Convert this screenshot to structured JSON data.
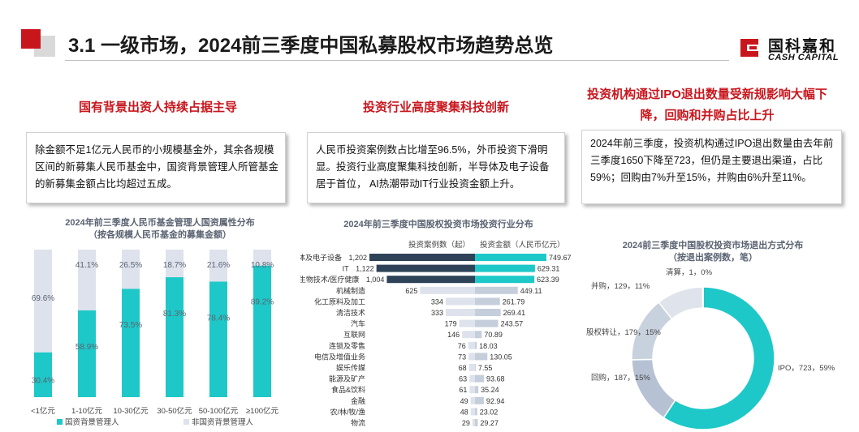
{
  "header": {
    "title": "3.1 一级市场，2024前三季度中国私募股权市场趋势总览",
    "logo_cn": "国科嘉和",
    "logo_en": "CASH CAPITAL"
  },
  "columns": [
    {
      "heading": "国有背景出资人持续占据主导",
      "text": "除金额不足1亿元人民币的小规模基金外，其余各规模区间的新募集人民币基金中，国资背景管理人所管基金的新募集金额占比均超过五成。"
    },
    {
      "heading": "投资行业高度聚集科技创新",
      "text": "人民币投资案例数占比增至96.5%，外币投资下滑明显。投资行业高度聚集科技创新，半导体及电子设备居于首位， AI热潮带动IT行业投资金额上升。"
    },
    {
      "heading_line1": "投资机构通过IPO退出数量受新规影响大幅下",
      "heading_line2": "降，回购和并购占比上升",
      "text": "2024年前三季度，投资机构通过IPO退出数量由去年前三季度1650下降至723，但仍是主要退出渠道，占比59%；回购由7%升至15%，并购由6%升至11%。"
    }
  ],
  "colors": {
    "accent_red": "#c8161d",
    "teal": "#1ec8c8",
    "navy": "#2f4358",
    "light_gray": "#dde2ec",
    "mid_gray": "#c5cedb"
  },
  "chart_data": [
    {
      "type": "bar",
      "stacked": true,
      "percent": true,
      "title_line1": "2024年前三季度人民币基金管理人国资属性分布",
      "title_line2": "（按各规模人民币基金的募集金额）",
      "categories": [
        "<1亿元",
        "1-10亿元",
        "10-30亿元",
        "30-50亿元",
        "50-100亿元",
        "≥100亿元"
      ],
      "series": [
        {
          "name": "国资背景管理人",
          "values": [
            30.4,
            58.9,
            73.5,
            81.3,
            78.4,
            89.2
          ],
          "labels": [
            "30.4%",
            "58.9%",
            "73.5%",
            "81.3%",
            "78.4%",
            "89.2%"
          ]
        },
        {
          "name": "非国资背景管理人",
          "values": [
            69.6,
            41.1,
            26.5,
            18.7,
            21.6,
            10.8
          ],
          "labels": [
            "69.6%",
            "41.1%",
            "26.5%",
            "18.7%",
            "21.6%",
            "10.8%"
          ]
        }
      ],
      "ylim": [
        0,
        100
      ],
      "legend": "bottom-left",
      "grid": false
    },
    {
      "type": "bar",
      "orientation": "horizontal",
      "diverging": true,
      "title": "2024年前三季度中国股权投资市场投资行业分布",
      "categories": [
        "半导体及电子设备",
        "IT",
        "生物技术/医疗健康",
        "机械制造",
        "化工原料及加工",
        "清洁技术",
        "汽车",
        "互联网",
        "连锁及零售",
        "电信及增值业务",
        "娱乐传媒",
        "能源及矿产",
        "食品&饮料",
        "金融",
        "农/林/牧/渔",
        "物流"
      ],
      "series": [
        {
          "name": "投资案例数（起）",
          "values": [
            1202,
            1122,
            1004,
            625,
            334,
            333,
            179,
            146,
            76,
            73,
            68,
            63,
            61,
            49,
            48,
            29
          ],
          "labels": [
            "1,202",
            "1,122",
            "1,004",
            "625",
            "334",
            "333",
            "179",
            "146",
            "76",
            "73",
            "68",
            "63",
            "61",
            "49",
            "48",
            "29"
          ]
        },
        {
          "name": "投资金额（人民币亿元）",
          "values": [
            749.67,
            629.31,
            623.39,
            449.11,
            261.79,
            269.41,
            243.57,
            70.89,
            18.03,
            130.05,
            7.55,
            93.68,
            35.24,
            92.94,
            23.02,
            29.27
          ],
          "labels": [
            "749.67",
            "629.31",
            "623.39",
            "449.11",
            "261.79",
            "269.41",
            "243.57",
            "70.89",
            "18.03",
            "130.05",
            "7.55",
            "93.68",
            "35.24",
            "92.94",
            "23.02",
            "29.27"
          ]
        }
      ],
      "legend": "top",
      "grid": false
    },
    {
      "type": "pie",
      "donut": true,
      "title_line1": "2024前三季度中国股权投资市场退出方式分布",
      "title_line2": "（按退出案例数，笔）",
      "slices": [
        {
          "name": "IPO",
          "value": 723,
          "percent": 59,
          "label": "IPO，723，59%"
        },
        {
          "name": "回购",
          "value": 187,
          "percent": 15,
          "label": "回购，187，15%"
        },
        {
          "name": "股权转让",
          "value": 179,
          "percent": 15,
          "label": "股权转让，179，15%"
        },
        {
          "name": "并购",
          "value": 129,
          "percent": 11,
          "label": "并购，129，11%"
        },
        {
          "name": "清算",
          "value": 1,
          "percent": 0,
          "label": "清算，1，0%"
        }
      ]
    }
  ]
}
